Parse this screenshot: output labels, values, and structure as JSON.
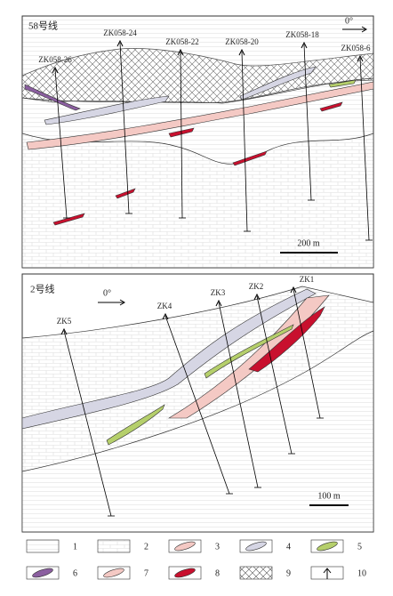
{
  "sections": [
    {
      "title": "58号线",
      "orientation": "0°",
      "scale": "200 m",
      "holes": [
        "ZK058-26",
        "ZK058-24",
        "ZK058-22",
        "ZK058-20",
        "ZK058-18",
        "ZK058-6"
      ]
    },
    {
      "title": "2号线",
      "orientation": "0°",
      "scale": "100 m",
      "holes": [
        "ZK5",
        "ZK4",
        "ZK3",
        "ZK2",
        "ZK1"
      ]
    }
  ],
  "legend": [
    "1",
    "2",
    "3",
    "4",
    "5",
    "6",
    "7",
    "8",
    "9",
    "10"
  ]
}
